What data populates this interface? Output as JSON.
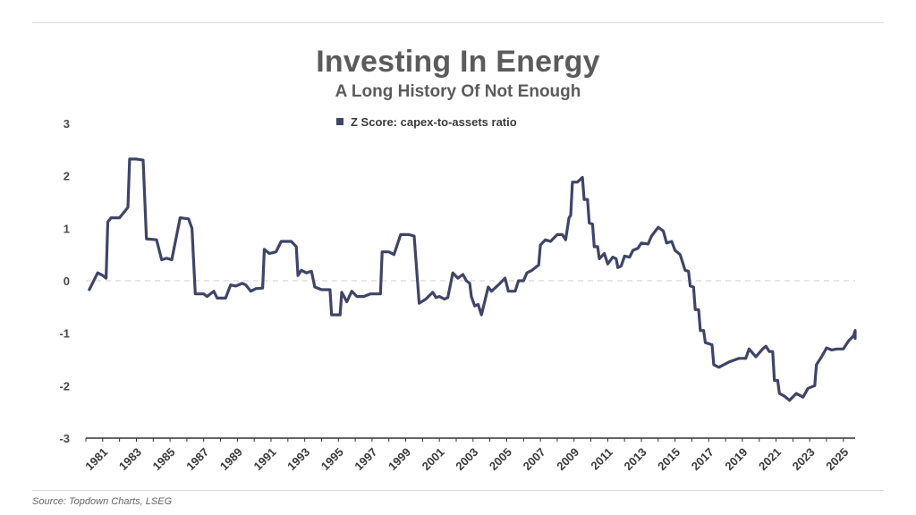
{
  "header": {
    "title": "Investing In Energy",
    "subtitle": "A Long History Of Not Enough"
  },
  "footer": {
    "source": "Source: Topdown Charts, LSEG"
  },
  "colors": {
    "series": "#3e4566",
    "text": "#5b5b5b",
    "zero_line": "#cccccc"
  },
  "chart_data": {
    "type": "line",
    "title": "Investing In Energy",
    "subtitle": "A Long History Of Not Enough",
    "xlabel": "",
    "ylabel": "",
    "xlim": [
      1980,
      2025.7
    ],
    "ylim": [
      -3,
      3
    ],
    "y_ticks": [
      3,
      2,
      1,
      0,
      -1,
      -2,
      -3
    ],
    "x_ticks": [
      1981,
      1983,
      1985,
      1987,
      1989,
      1991,
      1993,
      1995,
      1997,
      1999,
      2001,
      2003,
      2005,
      2007,
      2009,
      2011,
      2013,
      2015,
      2017,
      2019,
      2021,
      2023,
      2025
    ],
    "grid": false,
    "zero_line": "dashed",
    "legend": "top-center",
    "series": [
      {
        "name": "Z Score: capex-to-assets ratio",
        "points": [
          [
            1980.2,
            -0.17
          ],
          [
            1980.7,
            0.15
          ],
          [
            1981.0,
            0.1
          ],
          [
            1981.2,
            0.05
          ],
          [
            1981.3,
            1.12
          ],
          [
            1981.5,
            1.2
          ],
          [
            1981.8,
            1.2
          ],
          [
            1982.0,
            1.2
          ],
          [
            1982.5,
            1.4
          ],
          [
            1982.6,
            2.32
          ],
          [
            1983.0,
            2.32
          ],
          [
            1983.4,
            2.3
          ],
          [
            1983.6,
            0.8
          ],
          [
            1984.2,
            0.78
          ],
          [
            1984.5,
            0.4
          ],
          [
            1984.8,
            0.43
          ],
          [
            1985.1,
            0.4
          ],
          [
            1985.6,
            1.2
          ],
          [
            1986.1,
            1.18
          ],
          [
            1986.3,
            1.0
          ],
          [
            1986.5,
            -0.25
          ],
          [
            1987.0,
            -0.25
          ],
          [
            1987.2,
            -0.3
          ],
          [
            1987.6,
            -0.2
          ],
          [
            1987.8,
            -0.33
          ],
          [
            1988.3,
            -0.33
          ],
          [
            1988.6,
            -0.08
          ],
          [
            1988.9,
            -0.1
          ],
          [
            1989.3,
            -0.05
          ],
          [
            1989.5,
            -0.08
          ],
          [
            1989.8,
            -0.2
          ],
          [
            1990.1,
            -0.15
          ],
          [
            1990.5,
            -0.14
          ],
          [
            1990.6,
            0.6
          ],
          [
            1990.9,
            0.52
          ],
          [
            1991.3,
            0.55
          ],
          [
            1991.6,
            0.75
          ],
          [
            1992.2,
            0.75
          ],
          [
            1992.5,
            0.65
          ],
          [
            1992.6,
            0.1
          ],
          [
            1992.8,
            0.2
          ],
          [
            1993.1,
            0.15
          ],
          [
            1993.4,
            0.18
          ],
          [
            1993.6,
            -0.12
          ],
          [
            1994.0,
            -0.17
          ],
          [
            1994.5,
            -0.17
          ],
          [
            1994.6,
            -0.65
          ],
          [
            1995.1,
            -0.65
          ],
          [
            1995.2,
            -0.22
          ],
          [
            1995.5,
            -0.4
          ],
          [
            1995.8,
            -0.2
          ],
          [
            1996.1,
            -0.3
          ],
          [
            1996.5,
            -0.3
          ],
          [
            1996.9,
            -0.25
          ],
          [
            1997.5,
            -0.25
          ],
          [
            1997.6,
            0.55
          ],
          [
            1998.0,
            0.55
          ],
          [
            1998.3,
            0.5
          ],
          [
            1998.7,
            0.88
          ],
          [
            1999.2,
            0.88
          ],
          [
            1999.5,
            0.85
          ],
          [
            1999.8,
            -0.43
          ],
          [
            2000.2,
            -0.35
          ],
          [
            2000.6,
            -0.22
          ],
          [
            2000.8,
            -0.32
          ],
          [
            2001.0,
            -0.3
          ],
          [
            2001.3,
            -0.35
          ],
          [
            2001.5,
            -0.32
          ],
          [
            2001.8,
            0.15
          ],
          [
            2002.1,
            0.05
          ],
          [
            2002.4,
            0.12
          ],
          [
            2002.6,
            0.0
          ],
          [
            2002.8,
            -0.05
          ],
          [
            2002.9,
            -0.3
          ],
          [
            2003.1,
            -0.48
          ],
          [
            2003.3,
            -0.45
          ],
          [
            2003.5,
            -0.65
          ],
          [
            2003.9,
            -0.12
          ],
          [
            2004.1,
            -0.2
          ],
          [
            2004.5,
            -0.08
          ],
          [
            2004.9,
            0.05
          ],
          [
            2005.1,
            -0.2
          ],
          [
            2005.5,
            -0.2
          ],
          [
            2005.7,
            0.0
          ],
          [
            2006.0,
            0.0
          ],
          [
            2006.2,
            0.15
          ],
          [
            2006.5,
            0.2
          ],
          [
            2006.9,
            0.3
          ],
          [
            2007.0,
            0.68
          ],
          [
            2007.3,
            0.78
          ],
          [
            2007.6,
            0.75
          ],
          [
            2008.0,
            0.88
          ],
          [
            2008.3,
            0.88
          ],
          [
            2008.5,
            0.78
          ],
          [
            2008.7,
            1.2
          ],
          [
            2008.8,
            1.25
          ],
          [
            2008.9,
            1.88
          ],
          [
            2009.2,
            1.88
          ],
          [
            2009.5,
            1.97
          ],
          [
            2009.6,
            1.55
          ],
          [
            2009.8,
            1.55
          ],
          [
            2009.9,
            1.1
          ],
          [
            2010.1,
            1.08
          ],
          [
            2010.2,
            0.65
          ],
          [
            2010.4,
            0.65
          ],
          [
            2010.5,
            0.42
          ],
          [
            2010.8,
            0.52
          ],
          [
            2011.0,
            0.32
          ],
          [
            2011.3,
            0.45
          ],
          [
            2011.5,
            0.42
          ],
          [
            2011.6,
            0.25
          ],
          [
            2011.8,
            0.28
          ],
          [
            2012.0,
            0.47
          ],
          [
            2012.3,
            0.45
          ],
          [
            2012.5,
            0.58
          ],
          [
            2012.8,
            0.62
          ],
          [
            2013.0,
            0.72
          ],
          [
            2013.4,
            0.7
          ],
          [
            2013.6,
            0.85
          ],
          [
            2014.0,
            1.02
          ],
          [
            2014.3,
            0.95
          ],
          [
            2014.5,
            0.72
          ],
          [
            2014.8,
            0.75
          ],
          [
            2015.0,
            0.58
          ],
          [
            2015.3,
            0.5
          ],
          [
            2015.6,
            0.2
          ],
          [
            2015.8,
            0.18
          ],
          [
            2015.9,
            -0.1
          ],
          [
            2016.1,
            -0.12
          ],
          [
            2016.2,
            -0.55
          ],
          [
            2016.4,
            -0.55
          ],
          [
            2016.5,
            -0.95
          ],
          [
            2016.7,
            -0.95
          ],
          [
            2016.8,
            -1.18
          ],
          [
            2017.2,
            -1.22
          ],
          [
            2017.3,
            -1.6
          ],
          [
            2017.6,
            -1.65
          ],
          [
            2018.2,
            -1.55
          ],
          [
            2018.8,
            -1.48
          ],
          [
            2019.2,
            -1.48
          ],
          [
            2019.4,
            -1.3
          ],
          [
            2019.8,
            -1.45
          ],
          [
            2020.2,
            -1.3
          ],
          [
            2020.4,
            -1.25
          ],
          [
            2020.6,
            -1.35
          ],
          [
            2020.8,
            -1.35
          ],
          [
            2020.9,
            -1.9
          ],
          [
            2021.1,
            -1.9
          ],
          [
            2021.2,
            -2.15
          ],
          [
            2021.5,
            -2.2
          ],
          [
            2021.8,
            -2.28
          ],
          [
            2022.2,
            -2.15
          ],
          [
            2022.5,
            -2.2
          ],
          [
            2022.6,
            -2.22
          ],
          [
            2022.9,
            -2.05
          ],
          [
            2023.3,
            -2.0
          ],
          [
            2023.4,
            -1.6
          ],
          [
            2023.7,
            -1.45
          ],
          [
            2024.0,
            -1.28
          ],
          [
            2024.3,
            -1.32
          ],
          [
            2024.6,
            -1.3
          ],
          [
            2025.0,
            -1.3
          ],
          [
            2025.3,
            -1.15
          ],
          [
            2025.6,
            -1.05
          ],
          [
            2025.8,
            -0.95
          ],
          [
            2025.9,
            -1.1
          ],
          [
            2026.2,
            -1.1
          ]
        ]
      }
    ]
  }
}
